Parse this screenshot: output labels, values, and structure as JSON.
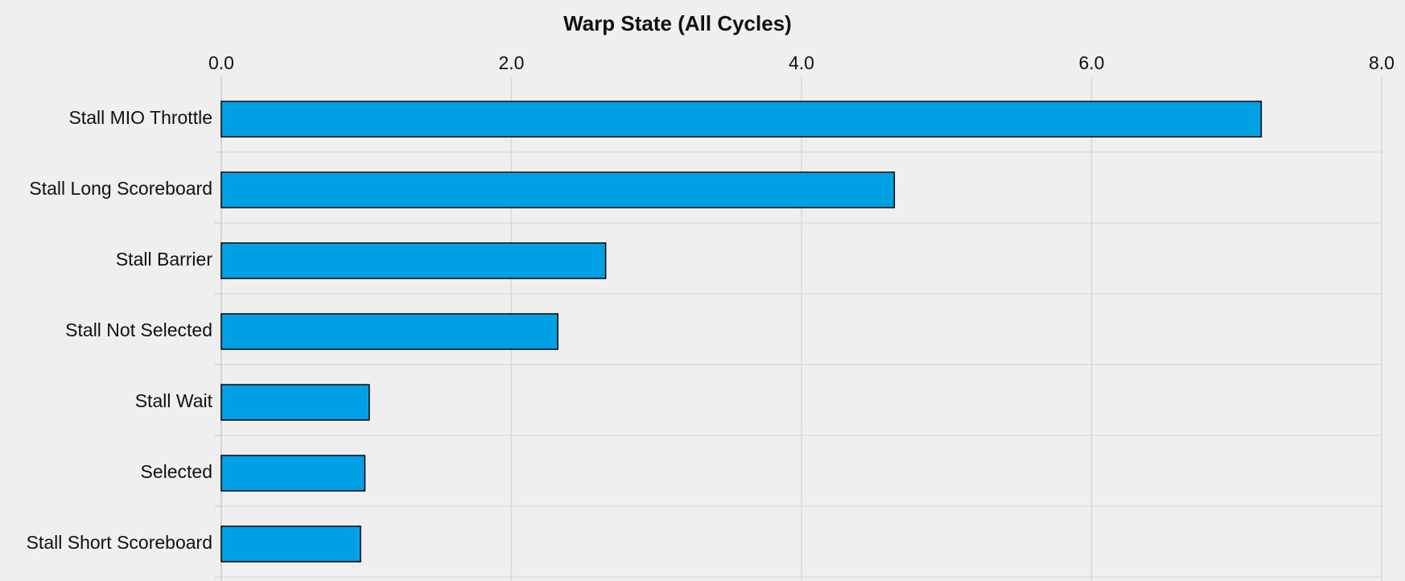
{
  "chart_data": {
    "type": "bar",
    "orientation": "horizontal",
    "title": "Warp State (All Cycles)",
    "categories": [
      "Stall MIO Throttle",
      "Stall Long Scoreboard",
      "Stall Barrier",
      "Stall Not Selected",
      "Stall Wait",
      "Selected",
      "Stall Short Scoreboard"
    ],
    "values": [
      7.17,
      4.64,
      2.65,
      2.32,
      1.02,
      0.99,
      0.96
    ],
    "color": "#00a1e4",
    "xlim": [
      0,
      8
    ],
    "xticks": [
      {
        "value": 0,
        "label": "0.0"
      },
      {
        "value": 2,
        "label": "2.0"
      },
      {
        "value": 4,
        "label": "4.0"
      },
      {
        "value": 6,
        "label": "6.0"
      },
      {
        "value": 8,
        "label": "8.0"
      }
    ],
    "grid": true
  }
}
